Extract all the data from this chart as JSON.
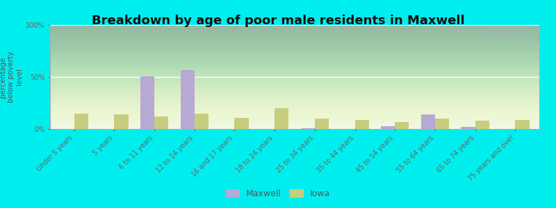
{
  "title": "Breakdown by age of poor male residents in Maxwell",
  "ylabel": "percentage\nbelow poverty\nlevel",
  "categories": [
    "Under 5 years",
    "5 years",
    "6 to 11 years",
    "12 to 14 years",
    "16 and 17 years",
    "18 to 24 years",
    "25 to 34 years",
    "35 to 44 years",
    "45 to 54 years",
    "55 to 64 years",
    "65 to 74 years",
    "75 years and over"
  ],
  "maxwell_values": [
    0,
    0,
    51,
    57,
    0,
    0,
    1,
    0,
    3,
    14,
    2,
    0
  ],
  "iowa_values": [
    15,
    14,
    12,
    15,
    11,
    20,
    10,
    9,
    7,
    10,
    8,
    9
  ],
  "maxwell_color": "#b8a9d4",
  "iowa_color": "#c8cc7e",
  "bar_width": 0.35,
  "ylim": [
    0,
    100
  ],
  "yticks": [
    0,
    50,
    100
  ],
  "ytick_labels": [
    "0%",
    "50%",
    "100%"
  ],
  "outer_bg": "#00eeee",
  "legend_maxwell": "Maxwell",
  "legend_iowa": "Iowa",
  "title_fontsize": 13,
  "axis_label_fontsize": 7.5,
  "tick_fontsize": 7,
  "watermark": "City-Data.com"
}
